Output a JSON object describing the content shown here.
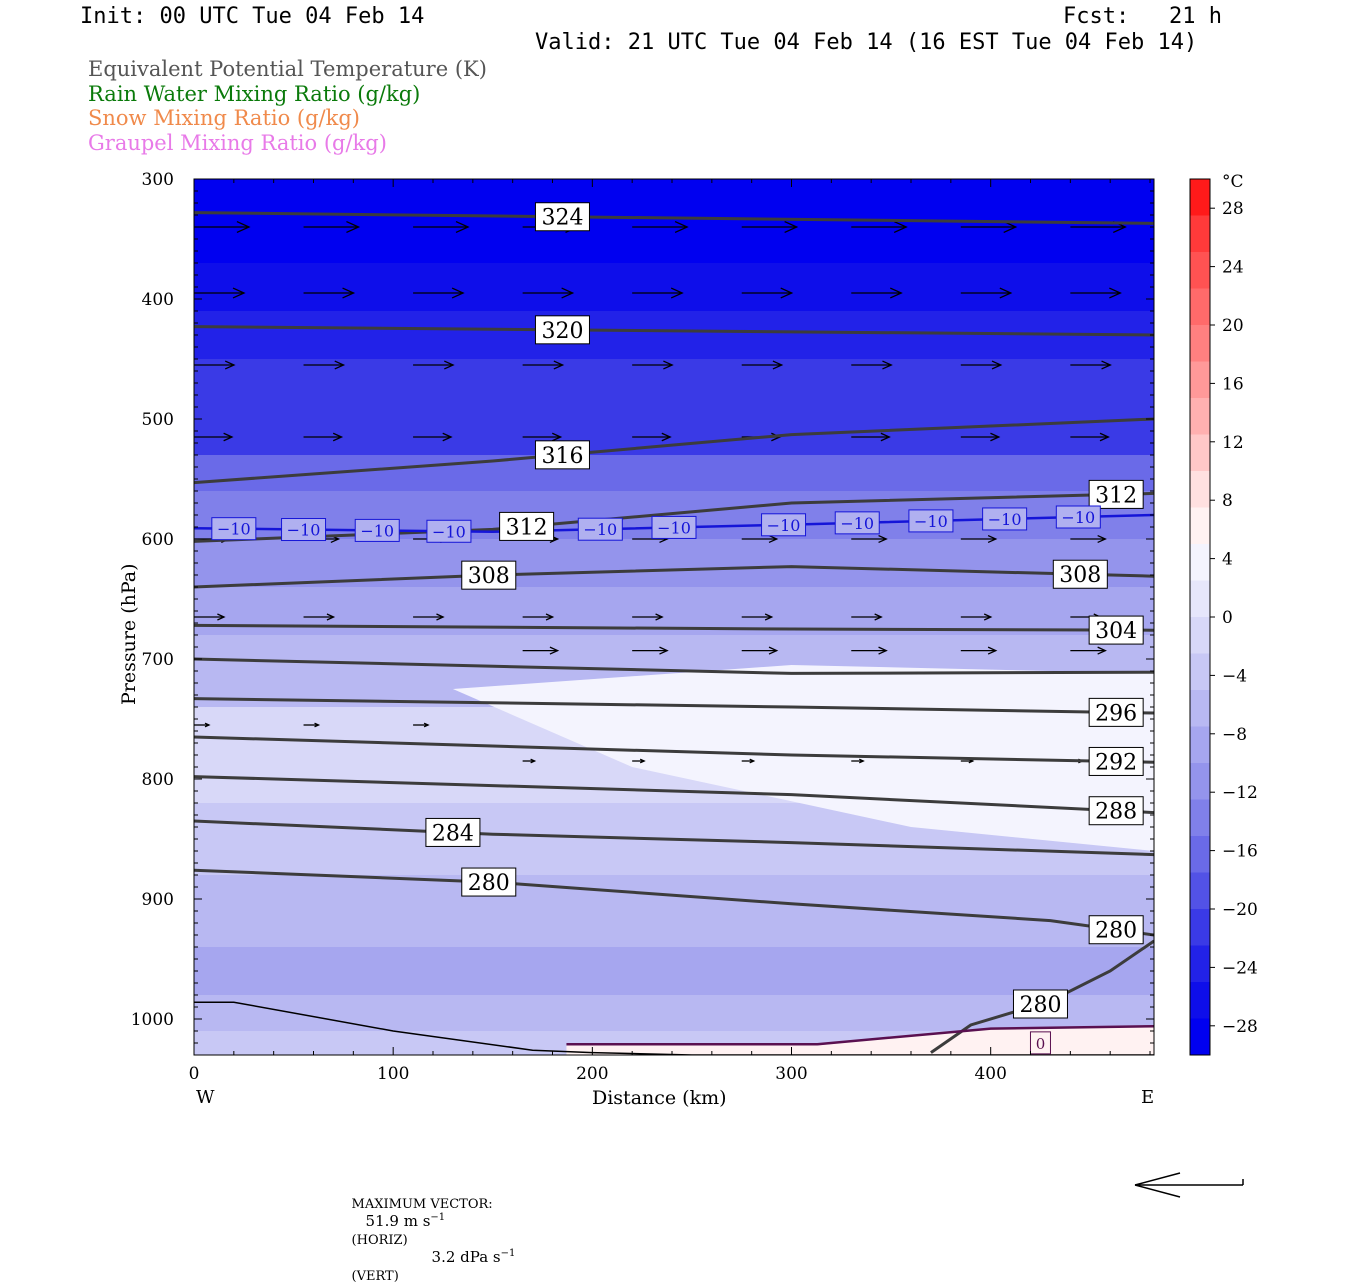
{
  "header": {
    "init": "Init: 00 UTC Tue 04 Feb 14",
    "fcst": "Fcst:   21 h",
    "valid": "Valid: 21 UTC Tue 04 Feb 14 (16 EST Tue 04 Feb 14)"
  },
  "legend": [
    {
      "text": "Equivalent Potential Temperature (K)",
      "color": "#555555"
    },
    {
      "text": "Rain Water Mixing Ratio (g/kg)",
      "color": "#0a7a0a"
    },
    {
      "text": "Snow Mixing Ratio (g/kg)",
      "color": "#f08a4b"
    },
    {
      "text": "Graupel Mixing Ratio (g/kg)",
      "color": "#e87ae8"
    }
  ],
  "footer": {
    "max_vector_label": "MAXIMUM VECTOR:",
    "horiz_value": "51.9 m s",
    "horiz_unit": "(HORIZ)",
    "vert_value": "3.2 dPa s",
    "vert_unit": "(VERT)",
    "exponent": "−1"
  },
  "chart_data": {
    "type": "cross-section",
    "xlabel": "Distance (km)",
    "ylabel": "Pressure (hPa)",
    "x_ticks": [
      0,
      100,
      200,
      300,
      400
    ],
    "xlim": [
      0,
      482
    ],
    "x_end_labels": [
      "W",
      "E"
    ],
    "y_ticks": [
      300,
      400,
      500,
      600,
      700,
      800,
      900,
      1000
    ],
    "ylim": [
      300,
      1030
    ],
    "colorbar": {
      "unit": "°C",
      "ticks": [
        28,
        24,
        20,
        16,
        12,
        8,
        4,
        0,
        -4,
        -8,
        -12,
        -16,
        -20,
        -24,
        -28
      ],
      "colors": [
        "#ff1a1a",
        "#ff3a3a",
        "#ff5252",
        "#ff6a6a",
        "#ff8080",
        "#ff9999",
        "#ffb0b0",
        "#ffc8c8",
        "#ffe0e0",
        "#fff2f2",
        "#f4f4fe",
        "#e6e6fb",
        "#d8d8f8",
        "#c8c8f5",
        "#b8b8f2",
        "#a6a6ef",
        "#9494ec",
        "#8080ea",
        "#6a6ae8",
        "#5252e6",
        "#3a3ae6",
        "#2222e8",
        "#0e0eea",
        "#0000f0"
      ]
    },
    "temperature_bands": [
      {
        "p": 300,
        "t": -30
      },
      {
        "p": 330,
        "t": -28
      },
      {
        "p": 370,
        "t": -26
      },
      {
        "p": 410,
        "t": -24
      },
      {
        "p": 450,
        "t": -22
      },
      {
        "p": 490,
        "t": -20
      },
      {
        "p": 530,
        "t": -16
      },
      {
        "p": 560,
        "t": -14
      },
      {
        "p": 600,
        "t": -10
      },
      {
        "p": 640,
        "t": -8
      },
      {
        "p": 680,
        "t": -5
      },
      {
        "p": 740,
        "t": -2
      },
      {
        "p": 820,
        "t": -4
      },
      {
        "p": 880,
        "t": -6
      },
      {
        "p": 940,
        "t": -9
      },
      {
        "p": 980,
        "t": -6
      },
      {
        "p": 1010,
        "t": -3
      },
      {
        "p": 1030,
        "t": 1
      }
    ],
    "theta_e_contours": [
      {
        "value": 324,
        "x": [
          0,
          482
        ],
        "p": [
          328,
          337
        ],
        "labels": [
          {
            "x": 185,
            "text": "324"
          }
        ]
      },
      {
        "value": 320,
        "x": [
          0,
          482
        ],
        "p": [
          423,
          430
        ],
        "labels": [
          {
            "x": 185,
            "text": "320"
          }
        ]
      },
      {
        "value": 316,
        "x": [
          0,
          150,
          300,
          482
        ],
        "p": [
          553,
          535,
          513,
          500
        ],
        "labels": [
          {
            "x": 185,
            "text": "316"
          }
        ]
      },
      {
        "value": 312,
        "x": [
          0,
          150,
          300,
          482
        ],
        "p": [
          602,
          592,
          570,
          562
        ],
        "labels": [
          {
            "x": 167,
            "text": "312"
          },
          {
            "x": 463,
            "text": "312"
          }
        ]
      },
      {
        "value": 308,
        "x": [
          0,
          150,
          300,
          482
        ],
        "p": [
          640,
          630,
          623,
          631
        ],
        "labels": [
          {
            "x": 148,
            "text": "308"
          },
          {
            "x": 445,
            "text": "308"
          }
        ]
      },
      {
        "value": 304,
        "x": [
          0,
          300,
          482
        ],
        "p": [
          672,
          675,
          676
        ],
        "labels": [
          {
            "x": 463,
            "text": "304"
          }
        ]
      },
      {
        "value": 300,
        "x": [
          0,
          300,
          482
        ],
        "p": [
          700,
          712,
          711
        ],
        "labels": []
      },
      {
        "value": 296,
        "x": [
          0,
          300,
          482
        ],
        "p": [
          733,
          740,
          745
        ],
        "labels": [
          {
            "x": 463,
            "text": "296"
          }
        ]
      },
      {
        "value": 292,
        "x": [
          0,
          300,
          482
        ],
        "p": [
          765,
          780,
          786
        ],
        "labels": [
          {
            "x": 463,
            "text": "292"
          }
        ]
      },
      {
        "value": 288,
        "x": [
          0,
          300,
          482
        ],
        "p": [
          798,
          813,
          828
        ],
        "labels": [
          {
            "x": 463,
            "text": "288"
          }
        ]
      },
      {
        "value": 284,
        "x": [
          0,
          150,
          300,
          482
        ],
        "p": [
          835,
          846,
          853,
          863
        ],
        "labels": [
          {
            "x": 130,
            "text": "284"
          }
        ]
      },
      {
        "value": 280,
        "x": [
          0,
          150,
          300,
          430,
          482
        ],
        "p": [
          876,
          886,
          904,
          918,
          930
        ],
        "labels": [
          {
            "x": 148,
            "text": "280"
          },
          {
            "x": 463,
            "text": "280"
          }
        ]
      },
      {
        "value": 280,
        "x": [
          370,
          390,
          430,
          460,
          482
        ],
        "p": [
          1028,
          1005,
          985,
          960,
          935
        ],
        "labels": [
          {
            "x": 425,
            "text": "280"
          }
        ]
      }
    ],
    "isotherm_minus10": {
      "value": -10,
      "x": [
        0,
        150,
        300,
        482
      ],
      "p": [
        591,
        594,
        588,
        580
      ],
      "label_x": [
        20,
        55,
        92,
        128,
        204,
        241,
        296,
        333,
        370,
        407,
        444
      ],
      "label": "−10"
    },
    "isotherm_zero": {
      "value": 0,
      "x": [
        187,
        313,
        400,
        482
      ],
      "p": [
        1021,
        1021,
        1008,
        1006
      ],
      "label_x": 425,
      "label": "0"
    },
    "terrain": {
      "x": [
        0,
        20,
        100,
        170,
        200,
        250,
        482
      ],
      "p": [
        986,
        986,
        1010,
        1026,
        1028,
        1030,
        1030
      ]
    },
    "wind_vectors": [
      {
        "p": 340,
        "x": [
          0,
          55,
          110,
          165,
          220,
          275,
          330,
          385,
          440
        ],
        "len": 55
      },
      {
        "p": 395,
        "x": [
          0,
          55,
          110,
          165,
          220,
          275,
          330,
          385,
          440
        ],
        "len": 50
      },
      {
        "p": 455,
        "x": [
          0,
          55,
          110,
          165,
          220,
          275,
          330,
          385,
          440
        ],
        "len": 40
      },
      {
        "p": 515,
        "x": [
          0,
          55,
          110,
          165,
          220,
          275,
          330,
          385,
          440
        ],
        "len": 38
      },
      {
        "p": 600,
        "x": [
          0,
          55,
          110,
          165,
          220,
          275,
          330,
          385,
          440
        ],
        "len": 35
      },
      {
        "p": 665,
        "x": [
          0,
          55,
          110,
          165,
          220,
          275,
          330,
          385,
          440
        ],
        "len": 30
      },
      {
        "p": 693,
        "x": [
          165,
          220,
          275,
          330,
          385,
          440
        ],
        "len": 35
      },
      {
        "p": 755,
        "x": [
          0,
          55,
          110
        ],
        "len": 15
      },
      {
        "p": 785,
        "x": [
          165,
          220,
          275,
          330,
          385,
          440
        ],
        "len": 12
      }
    ],
    "max_vector_arrow_direction": "left"
  }
}
